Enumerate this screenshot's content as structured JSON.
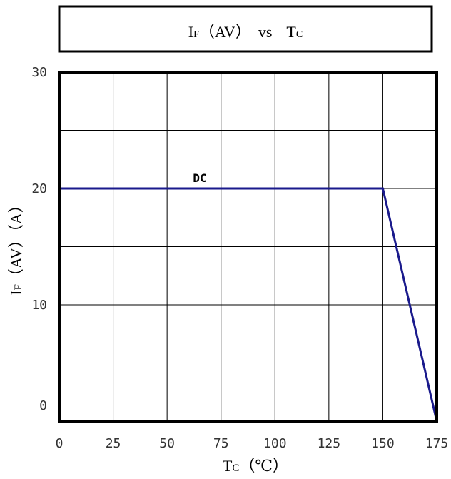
{
  "title": {
    "main_i": "I",
    "sub_f": "F",
    "paren": "（AV）",
    "vs": "vs",
    "main_t": "T",
    "sub_c": "C"
  },
  "axis_labels": {
    "x_main": "T",
    "x_sub": "C",
    "x_unit": "（℃）",
    "y_main": "I",
    "y_sub": "F",
    "y_rest": "（AV）（A）"
  },
  "colors": {
    "line": "#1a1a8c",
    "grid": "#000000",
    "frame": "#000000",
    "tick_text": "#333333"
  },
  "chart_data": {
    "type": "line",
    "xlim": [
      0,
      175
    ],
    "ylim": [
      0,
      30
    ],
    "x_ticks": [
      "0",
      "25",
      "50",
      "75",
      "100",
      "125",
      "150",
      "175"
    ],
    "y_ticks": [
      "0",
      "10",
      "20",
      "30"
    ],
    "x_tick_values": [
      0,
      25,
      50,
      75,
      100,
      125,
      150,
      175
    ],
    "y_tick_values": [
      0,
      10,
      20,
      30
    ],
    "x_grid_values": [
      0,
      25,
      50,
      75,
      100,
      125,
      150,
      175
    ],
    "y_grid_values": [
      0,
      5,
      10,
      15,
      20,
      25,
      30
    ],
    "grid": true,
    "series": [
      {
        "name": "DC",
        "x": [
          0,
          150,
          175
        ],
        "y": [
          20,
          20,
          0
        ]
      }
    ],
    "annotations": [
      {
        "text": "DC",
        "x": 62,
        "y": 20
      }
    ]
  }
}
